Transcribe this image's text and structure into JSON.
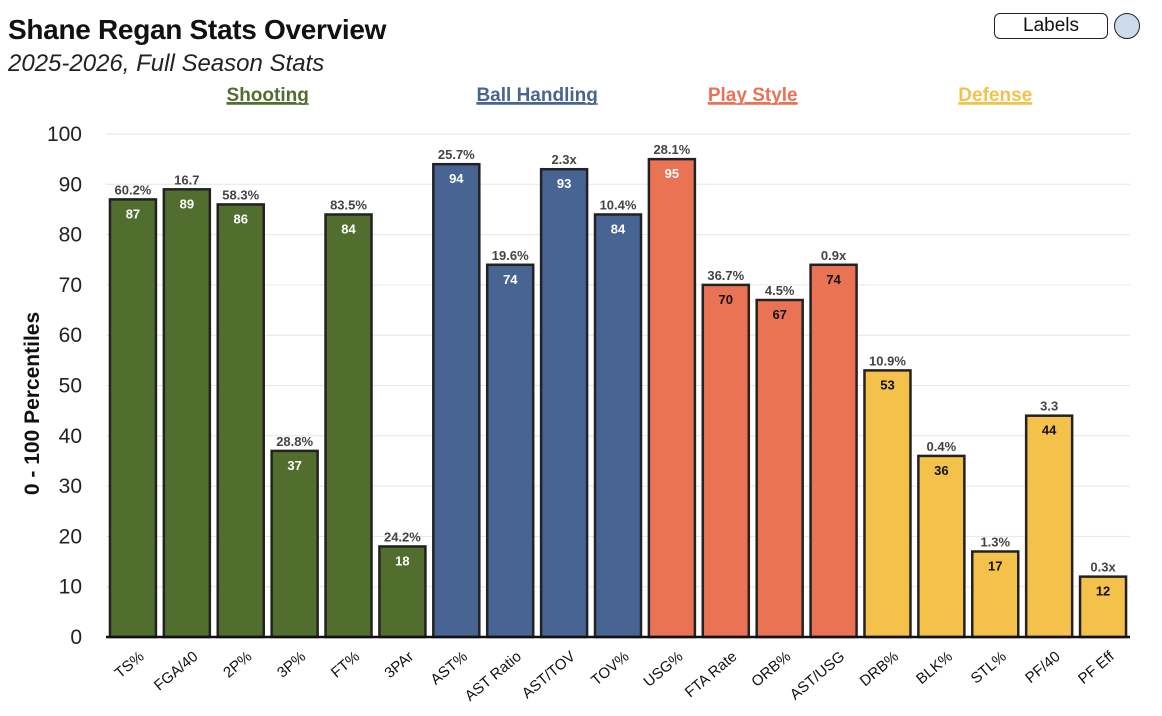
{
  "header": {
    "title": "Shane Regan Stats Overview",
    "subtitle": "2025-2026, Full Season Stats"
  },
  "controls": {
    "labels_button": "Labels",
    "toggle_state": "off"
  },
  "chart_data": {
    "type": "bar",
    "title": "Shane Regan Stats Overview",
    "subtitle": "2025-2026, Full Season Stats",
    "xlabel": "",
    "ylabel": "0 - 100 Percentiles",
    "ylim": [
      0,
      100
    ],
    "yticks": [
      0,
      10,
      20,
      30,
      40,
      50,
      60,
      70,
      80,
      90,
      100
    ],
    "grid": true,
    "groups": [
      {
        "name": "Shooting",
        "color": "#516e2f",
        "label_color": "#516e2f"
      },
      {
        "name": "Ball Handling",
        "color": "#486493",
        "label_color": "#486493"
      },
      {
        "name": "Play Style",
        "color": "#ea7255",
        "label_color": "#ea7255"
      },
      {
        "name": "Defense",
        "color": "#f4c14a",
        "label_color": "#f4c14a"
      }
    ],
    "categories": [
      "TS%",
      "FGA/40",
      "2P%",
      "3P%",
      "FT%",
      "3PAr",
      "AST%",
      "AST Ratio",
      "AST/TOV",
      "TOV%",
      "USG%",
      "FTA Rate",
      "ORB%",
      "AST/USG",
      "DRB%",
      "BLK%",
      "STL%",
      "PF/40",
      "PF Eff"
    ],
    "values": [
      87,
      89,
      86,
      37,
      84,
      18,
      94,
      74,
      93,
      84,
      95,
      70,
      67,
      74,
      53,
      36,
      17,
      44,
      12
    ],
    "stat_labels": [
      "60.2%",
      "16.7",
      "58.3%",
      "28.8%",
      "83.5%",
      "24.2%",
      "25.7%",
      "19.6%",
      "2.3x",
      "10.4%",
      "28.1%",
      "36.7%",
      "4.5%",
      "0.9x",
      "10.9%",
      "0.4%",
      "1.3%",
      "3.3",
      "0.3x"
    ],
    "group_index": [
      0,
      0,
      0,
      0,
      0,
      0,
      1,
      1,
      1,
      1,
      2,
      2,
      2,
      2,
      3,
      3,
      3,
      3,
      3
    ]
  }
}
